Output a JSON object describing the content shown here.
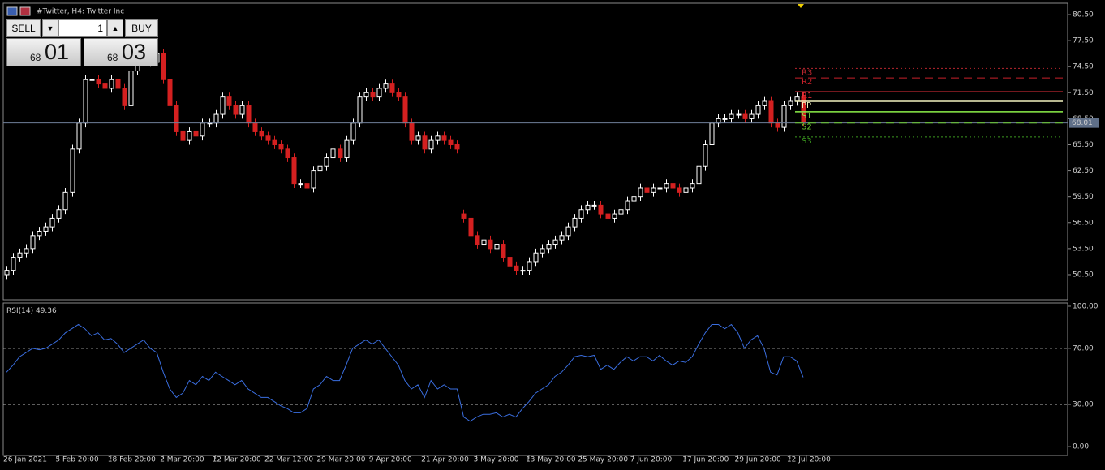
{
  "chart_data": [
    {
      "type": "candlestick",
      "title": "#Twitter, H4:  Twitter Inc",
      "open": [
        50.5,
        51,
        52.5,
        53,
        53.5,
        55,
        55.5,
        56,
        57,
        58,
        60,
        65,
        68,
        73,
        73,
        72.5,
        72,
        73,
        72,
        70,
        74,
        76,
        75,
        75,
        76,
        73,
        70,
        67,
        66,
        67,
        66.5,
        68,
        68,
        69,
        71,
        70,
        69,
        70,
        68,
        67,
        66.5,
        66,
        65.5,
        65,
        64,
        61,
        61,
        60.5,
        62.5,
        63,
        64,
        65,
        64,
        66,
        68,
        71,
        71.5,
        71,
        72,
        72.5,
        71.5,
        71,
        68,
        66,
        66.5,
        65,
        66,
        66.5,
        66,
        65.5,
        57.5,
        57,
        55,
        54,
        54.5,
        53.5,
        54,
        52.5,
        51.5,
        51,
        51,
        52,
        53,
        53.5,
        54,
        54.5,
        55,
        56,
        57,
        58,
        58.5,
        58.5,
        57.5,
        57,
        57.5,
        58,
        59,
        59.5,
        60.5,
        60,
        60.5,
        60.5,
        61,
        60.5,
        60,
        60.5,
        61,
        63,
        65.5,
        68,
        68.5,
        68.5,
        69,
        69,
        68.5,
        69,
        70,
        70.5,
        68,
        67.5,
        70,
        70.5,
        71
      ],
      "high": [
        51.5,
        53,
        53.5,
        54,
        55.5,
        56,
        56.5,
        57.5,
        58.5,
        60.5,
        65.5,
        68.5,
        73.5,
        73.5,
        73.5,
        73,
        73.5,
        73.5,
        72.5,
        74.5,
        76.5,
        76.5,
        75.5,
        76.5,
        76.5,
        73.5,
        70.5,
        67.5,
        67.5,
        67.5,
        68.5,
        68.5,
        69.5,
        71.5,
        71.5,
        70.5,
        70.5,
        70.5,
        68.5,
        67.5,
        67,
        66.5,
        66,
        65.5,
        64.5,
        61.5,
        61.5,
        63,
        63.5,
        64.5,
        65.5,
        65.5,
        66.5,
        68.5,
        71.5,
        72,
        72,
        72.5,
        73,
        73,
        72,
        71.5,
        68.5,
        67,
        67,
        66.5,
        67,
        67,
        66.5,
        66,
        58,
        57.5,
        55.5,
        55,
        55,
        54.5,
        54.5,
        53,
        52,
        51.5,
        52.5,
        53.5,
        54,
        54.5,
        55,
        55.5,
        56.5,
        57.5,
        58.5,
        59,
        59,
        59,
        58,
        58,
        58.5,
        59.5,
        60,
        61,
        61,
        61,
        61,
        61.5,
        61.5,
        61,
        61,
        61.5,
        63.5,
        66,
        68.5,
        69,
        69,
        69.5,
        69.5,
        69.5,
        69.5,
        70.5,
        71,
        71,
        68.5,
        70.5,
        71,
        71.5,
        71.5
      ],
      "low": [
        50,
        50.5,
        52,
        52.5,
        53,
        54.5,
        55,
        55.5,
        56.5,
        57.5,
        59.5,
        64.5,
        67.5,
        72.5,
        72,
        71.5,
        71.5,
        71.5,
        69.5,
        69.5,
        73.5,
        74.5,
        74.5,
        74.5,
        72.5,
        69.5,
        66.5,
        65.5,
        65.5,
        66,
        66,
        67.5,
        67.5,
        68.5,
        69.5,
        68.5,
        68.5,
        67.5,
        66.5,
        66,
        65.5,
        65,
        64.5,
        63.5,
        60.5,
        60.5,
        60,
        60,
        62,
        62.5,
        63.5,
        63.5,
        63.5,
        65.5,
        67.5,
        70.5,
        70.5,
        70.5,
        71.5,
        71,
        70.5,
        67.5,
        65.5,
        65.5,
        64.5,
        64.5,
        65.5,
        65.5,
        65,
        64.5,
        56.5,
        54.5,
        53.5,
        53.5,
        53,
        53,
        52,
        51,
        50.5,
        50.5,
        50.5,
        51.5,
        52.5,
        53,
        53.5,
        54,
        54.5,
        55.5,
        56.5,
        57.5,
        58,
        57,
        56.5,
        56.5,
        57,
        57.5,
        58.5,
        59,
        59.5,
        59.5,
        60,
        60,
        60,
        59.5,
        59.5,
        60,
        60.5,
        62.5,
        65,
        67.5,
        68,
        68,
        68.5,
        68,
        68,
        68.5,
        69.5,
        67.5,
        67,
        67,
        69.5,
        70,
        67.7
      ],
      "close": [
        51,
        52.5,
        53,
        53.5,
        55,
        55.5,
        56,
        57,
        58,
        60,
        65,
        68,
        73,
        73,
        72.5,
        72,
        73,
        72,
        70,
        74,
        76,
        75,
        75,
        76,
        73,
        70,
        67,
        66,
        67,
        66.5,
        68,
        68,
        69,
        71,
        70,
        69,
        70,
        68,
        67,
        66.5,
        66,
        65.5,
        65,
        64,
        61,
        61,
        60.5,
        62.5,
        63,
        64,
        65,
        64,
        66,
        68,
        71,
        71.5,
        71,
        72,
        72.5,
        71.5,
        71,
        68,
        66,
        66.5,
        65,
        66,
        66.5,
        66,
        65.5,
        65,
        57,
        55,
        54,
        54.5,
        53.5,
        54,
        52.5,
        51.5,
        51,
        51,
        52,
        53,
        53.5,
        54,
        54.5,
        55,
        56,
        57,
        58,
        58.5,
        58.5,
        57.5,
        57,
        57.5,
        58,
        59,
        59.5,
        60.5,
        60,
        60.5,
        60.5,
        61,
        60.5,
        60,
        60.5,
        61,
        63,
        65.5,
        68,
        68.5,
        68.5,
        69,
        69,
        68.5,
        69,
        70,
        70.5,
        68,
        67.5,
        70,
        70.5,
        71,
        68.2
      ],
      "up_color": "#ffffff",
      "down_color": "#d42020",
      "xlim": [
        -0.5,
        162.5
      ],
      "xticks": [
        {
          "value": 0,
          "label": "26 Jan 2021"
        },
        {
          "value": 8,
          "label": "5 Feb 20:00"
        },
        {
          "value": 16,
          "label": "18 Feb 20:00"
        },
        {
          "value": 24,
          "label": "2 Mar 20:00"
        },
        {
          "value": 32,
          "label": "12 Mar 20:00"
        },
        {
          "value": 40,
          "label": "22 Mar 12:00"
        },
        {
          "value": 48,
          "label": "29 Mar 20:00"
        },
        {
          "value": 56,
          "label": "9 Apr 20:00"
        },
        {
          "value": 64,
          "label": "21 Apr 20:00"
        },
        {
          "value": 72,
          "label": "3 May 20:00"
        },
        {
          "value": 80,
          "label": "13 May 20:00"
        },
        {
          "value": 88,
          "label": "25 May 20:00"
        },
        {
          "value": 96,
          "label": "7 Jun 20:00"
        },
        {
          "value": 104,
          "label": "17 Jun 20:00"
        },
        {
          "value": 112,
          "label": "29 Jun 20:00"
        },
        {
          "value": 120,
          "label": "12 Jul 20:00"
        }
      ],
      "ylim": [
        47.6,
        81.81
      ],
      "yticks": [
        {
          "value": 80.5,
          "label": "80.50"
        },
        {
          "value": 77.5,
          "label": "77.50"
        },
        {
          "value": 74.5,
          "label": "74.50"
        },
        {
          "value": 71.5,
          "label": "71.50"
        },
        {
          "value": 68.5,
          "label": "68.50"
        },
        {
          "value": 65.5,
          "label": "65.50"
        },
        {
          "value": 62.5,
          "label": "62.50"
        },
        {
          "value": 59.5,
          "label": "59.50"
        },
        {
          "value": 56.5,
          "label": "56.50"
        },
        {
          "value": 53.5,
          "label": "53.50"
        },
        {
          "value": 50.5,
          "label": "50.50"
        }
      ],
      "current_price": 68.01,
      "pivots": [
        {
          "name": "R3",
          "value": 74.3,
          "color": "#b8262e",
          "style": "dotted"
        },
        {
          "name": "R2",
          "value": 73.2,
          "color": "#c8202a",
          "style": "dashed"
        },
        {
          "name": "R1",
          "value": 71.6,
          "color": "#e8303c",
          "style": "solid"
        },
        {
          "name": "PP",
          "value": 70.5,
          "color": "#f4f4c0",
          "style": "solid"
        },
        {
          "name": "S1",
          "value": 69.3,
          "color": "#8cf04a",
          "style": "solid"
        },
        {
          "name": "S2",
          "value": 68.0,
          "color": "#6cd030",
          "style": "dashed"
        },
        {
          "name": "S3",
          "value": 66.4,
          "color": "#3c9a20",
          "style": "dotted"
        }
      ]
    },
    {
      "type": "line",
      "name": "RSI(14)",
      "color": "#3a6ee0",
      "values": [
        53,
        58,
        64,
        67,
        70,
        69,
        70,
        73,
        76,
        81,
        84,
        87,
        84,
        79,
        81,
        76,
        77,
        73,
        67,
        70,
        73,
        76,
        70,
        67,
        53,
        41,
        35,
        38,
        47,
        44,
        50,
        47,
        53,
        50,
        47,
        44,
        47,
        41,
        38,
        35,
        35,
        32,
        29,
        27,
        24,
        24,
        27,
        41,
        44,
        50,
        47,
        47,
        58,
        70,
        73,
        76,
        73,
        76,
        70,
        64,
        58,
        47,
        41,
        44,
        35,
        47,
        41,
        44,
        41,
        41,
        21,
        18,
        21,
        23,
        23,
        24,
        21,
        23,
        21,
        27,
        32,
        38,
        41,
        44,
        50,
        53,
        58,
        64,
        65,
        64,
        65,
        55,
        58,
        55,
        60,
        64,
        61,
        64,
        64,
        61,
        65,
        61,
        58,
        61,
        60,
        64,
        73,
        81,
        87,
        87,
        84,
        87,
        81,
        70,
        76,
        79,
        70,
        53,
        51,
        64,
        64,
        61,
        49.36
      ],
      "xlim": [
        -0.5,
        162.5
      ],
      "ylim": [
        -6.4,
        102.3
      ],
      "yticks": [
        {
          "value": 100,
          "label": "100.00"
        },
        {
          "value": 70,
          "label": "70.00"
        },
        {
          "value": 30,
          "label": "30.00"
        },
        {
          "value": 0,
          "label": "0.00"
        }
      ],
      "levels": [
        70,
        30
      ]
    }
  ],
  "trade_panel": {
    "sell": "SELL",
    "buy": "BUY",
    "volume": 1,
    "sell_small": "68",
    "sell_big": "01",
    "buy_small": "68",
    "buy_big": "03"
  }
}
